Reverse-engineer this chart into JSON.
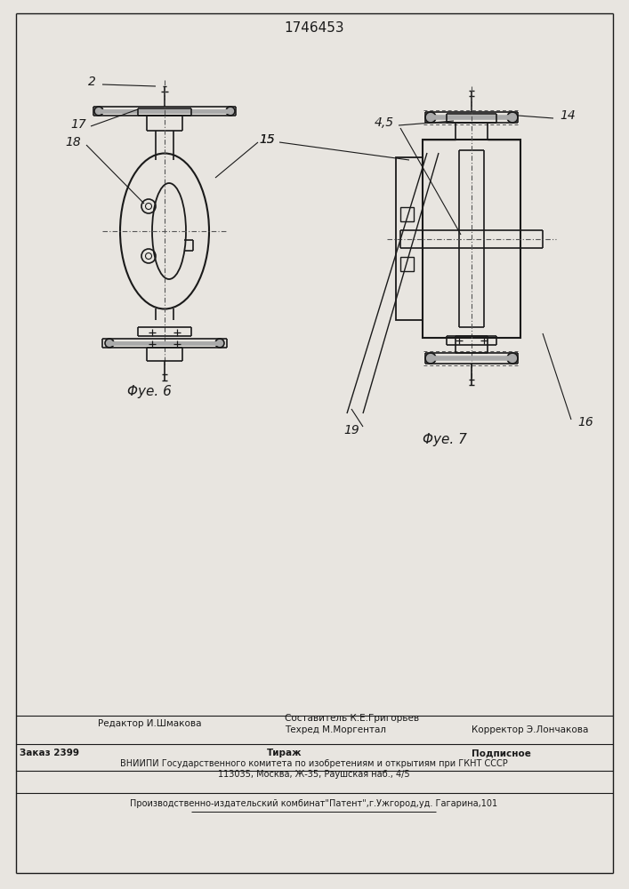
{
  "title": "1746453",
  "fig6_label": "Φуе. 6",
  "fig7_label": "Φуе. 7",
  "background_color": "#e8e5e0",
  "line_color": "#1a1a1a",
  "label_2": "2",
  "label_14": "14",
  "label_15": "15",
  "label_17": "17",
  "label_18": "18",
  "label_4_5": "4,5",
  "label_16": "16",
  "label_19": "19",
  "footer_editor": "Редактор И.Шмакова",
  "footer_sostavitel": "Составитель К.Е.Григорьев",
  "footer_tehred": "Техред М.Моргентал",
  "footer_korrektor": "Корректор Э.Лончакова",
  "footer_order": "Заказ 2399",
  "footer_tirazh": "Тираж",
  "footer_podpisnoe": "Подписное",
  "footer_vniiipi": "ВНИИПИ Государственного комитета по изобретениям и открытиям при ГКНТ СССР",
  "footer_address": "113035, Москва, Ж-35, Раушская наб., 4/5",
  "footer_factory": "Производственно-издательский комбинат\"Патент\",г.Ужгород,уд. Гагарина,101"
}
